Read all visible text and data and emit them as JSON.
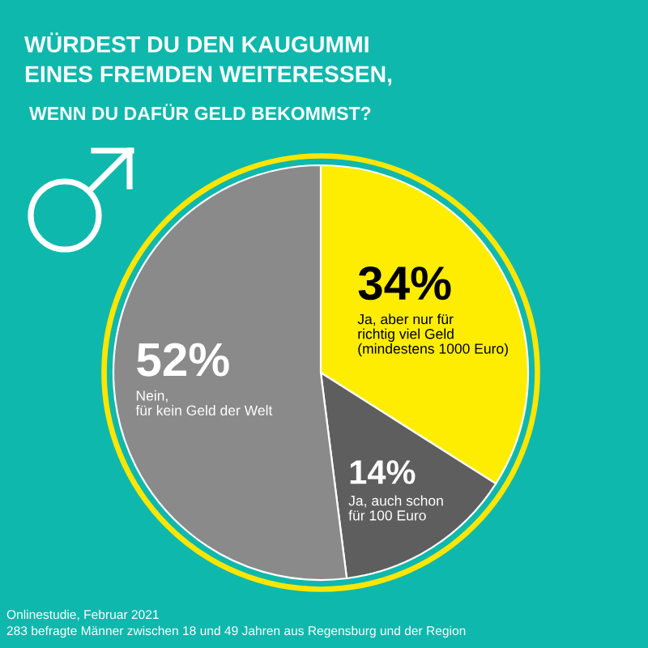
{
  "chart_data": {
    "type": "pie",
    "title": "WÜRDEST DU DEN KAUGUMMI\nEINES FREMDEN WEITERESSEN,",
    "subtitle": "WENN DU DAFÜR GELD BEKOMMST?",
    "categories": [
      "Ja, aber nur für\nrichtig viel Geld\n(mindestens 1000 Euro)",
      "Ja, auch schon\nfür 100 Euro",
      "Nein,\nfür kein Geld der Welt"
    ],
    "values": [
      34,
      14,
      52
    ],
    "colors": [
      "#ffed00",
      "#5e5e5e",
      "#8a8a8a"
    ],
    "value_labels": [
      "34%",
      "14%",
      "52%"
    ],
    "annotations": [
      "Onlinestudie, Februar 2021",
      "283 befragte Männer zwischen 18 und 49 Jahren aus Regensburg und der Region"
    ]
  }
}
